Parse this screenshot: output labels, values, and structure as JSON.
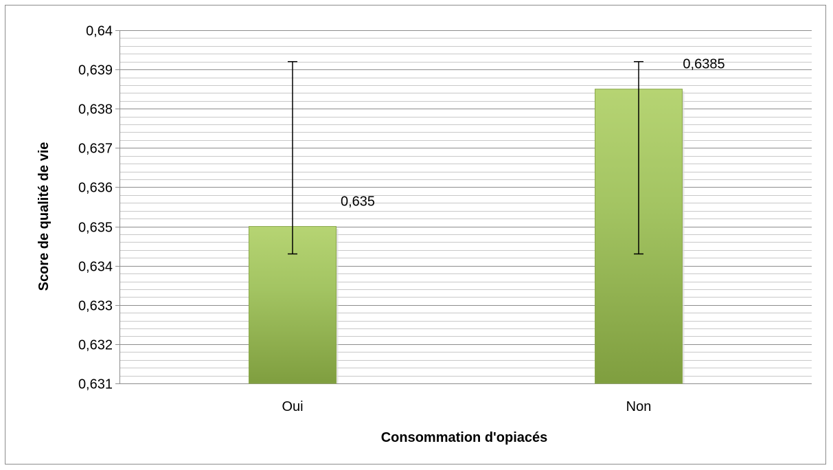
{
  "chart_data": {
    "type": "bar",
    "title": "",
    "xlabel": "Consommation d'opiacés",
    "ylabel": "Score de qualité de vie",
    "categories": [
      "Oui",
      "Non"
    ],
    "values": [
      0.635,
      0.6385
    ],
    "data_labels": [
      "0,635",
      "0,6385"
    ],
    "error_bars": [
      {
        "low": 0.6343,
        "high": 0.6392
      },
      {
        "low": 0.6343,
        "high": 0.6392
      }
    ],
    "ylim": [
      0.631,
      0.64
    ],
    "y_major_step": 0.001,
    "y_minor_step": 0.0002,
    "y_tick_labels": [
      "0,631",
      "0,632",
      "0,633",
      "0,634",
      "0,635",
      "0,636",
      "0,637",
      "0,638",
      "0,639",
      "0,64"
    ],
    "grid": true,
    "legend": "none",
    "bar_color": "#9bbb59",
    "bar_highlight_color": "#b6d473",
    "bar_shadow_color": "#6f8a36"
  }
}
